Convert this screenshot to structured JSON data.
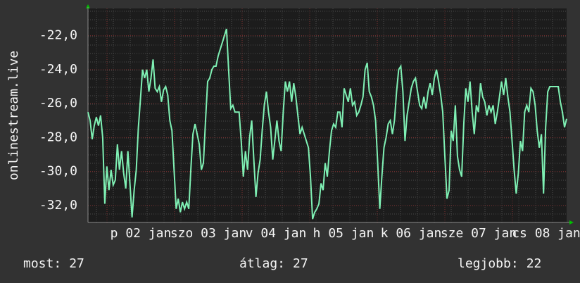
{
  "chart_data": {
    "type": "line",
    "y_label": "onlinestream.live",
    "color": "#7ff0b4",
    "ylim": [
      -33,
      -20.4
    ],
    "yticks": [
      {
        "value": -32,
        "label": "-32,0"
      },
      {
        "value": -30,
        "label": "-30,0"
      },
      {
        "value": -28,
        "label": "-28,0"
      },
      {
        "value": -26,
        "label": "-26,0"
      },
      {
        "value": -24,
        "label": "-24,0"
      },
      {
        "value": -22,
        "label": "-22,0"
      }
    ],
    "grid": true,
    "x_labels": [
      "p 02 jan",
      "szo 03 jan",
      "v 04 jan",
      "h 05 jan",
      "k 06 jan",
      "sze 07 jan",
      "cs 08 jan"
    ],
    "values": [
      -26.5,
      -27,
      -28.1,
      -27.3,
      -26.8,
      -27.3,
      -26.7,
      -28,
      -31.9,
      -29.7,
      -31.1,
      -29.9,
      -30.8,
      -30.5,
      -28.4,
      -29.9,
      -28.8,
      -30.1,
      -31,
      -28.8,
      -30.7,
      -32.7,
      -31.1,
      -29.9,
      -27.4,
      -25.7,
      -24,
      -24.5,
      -24,
      -25.3,
      -24.5,
      -23.4,
      -25.1,
      -25.3,
      -25,
      -25.9,
      -25.2,
      -25,
      -25.5,
      -27,
      -27.6,
      -29.9,
      -32.2,
      -31.6,
      -32.4,
      -31.8,
      -32.2,
      -31.8,
      -32.2,
      -29.9,
      -27.8,
      -27.2,
      -27.8,
      -28.4,
      -29.9,
      -29.5,
      -27,
      -24.7,
      -24.5,
      -24,
      -23.8,
      -23.8,
      -23.2,
      -22.8,
      -22.4,
      -22,
      -21.6,
      -24,
      -26.3,
      -26.1,
      -26.5,
      -26.5,
      -26.5,
      -28.2,
      -30.3,
      -28.8,
      -29.9,
      -28,
      -27,
      -29.3,
      -31.5,
      -30.1,
      -29.3,
      -27.6,
      -26.1,
      -25.3,
      -26.5,
      -27.4,
      -29.3,
      -28.2,
      -27,
      -28.2,
      -28.8,
      -26.5,
      -24.7,
      -25.3,
      -24.7,
      -25.9,
      -24.8,
      -25.6,
      -26.7,
      -27.8,
      -27.4,
      -27.8,
      -28.2,
      -28.6,
      -30.3,
      -32.8,
      -32.4,
      -32.2,
      -31.9,
      -30.7,
      -31.1,
      -29.5,
      -30.3,
      -28.8,
      -27.6,
      -27.2,
      -27.4,
      -26.5,
      -26.5,
      -27.4,
      -25.1,
      -25.5,
      -25.9,
      -25.1,
      -26.1,
      -25.9,
      -26.7,
      -26.5,
      -26.1,
      -25.6,
      -24,
      -23.6,
      -25.3,
      -25.6,
      -26.1,
      -27,
      -29.5,
      -32.2,
      -30.3,
      -28.6,
      -28,
      -27.2,
      -27,
      -27.8,
      -27,
      -25.3,
      -24,
      -23.8,
      -25.3,
      -28.2,
      -26.7,
      -25.9,
      -25.1,
      -24.7,
      -24.5,
      -25.3,
      -26.1,
      -26.3,
      -25.6,
      -26.3,
      -25.3,
      -24.8,
      -25.5,
      -24.5,
      -24,
      -24.7,
      -25.5,
      -26.5,
      -29.1,
      -31.6,
      -31.1,
      -27.6,
      -28.2,
      -26.1,
      -29.1,
      -29.9,
      -30.3,
      -27.2,
      -25.1,
      -25.9,
      -24.7,
      -26.5,
      -27.8,
      -26.1,
      -26.5,
      -24.8,
      -25.6,
      -25.9,
      -26.7,
      -26.1,
      -26.5,
      -26.1,
      -27.2,
      -26.5,
      -25.6,
      -24.7,
      -25.5,
      -24.5,
      -25.6,
      -26.5,
      -28.2,
      -29.9,
      -31.3,
      -30.1,
      -28.2,
      -28.8,
      -26.5,
      -26.1,
      -26.5,
      -25.1,
      -25.3,
      -26.1,
      -27.6,
      -28.6,
      -27.8,
      -31.3,
      -27.4,
      -25.3,
      -25,
      -25,
      -25,
      -25,
      -25,
      -25.9,
      -26.5,
      -27.4,
      -26.9
    ],
    "summary": [
      {
        "label": "most:",
        "value": 27
      },
      {
        "label": "átlag:",
        "value": 27
      },
      {
        "label": "legjobb:",
        "value": 22
      }
    ]
  }
}
